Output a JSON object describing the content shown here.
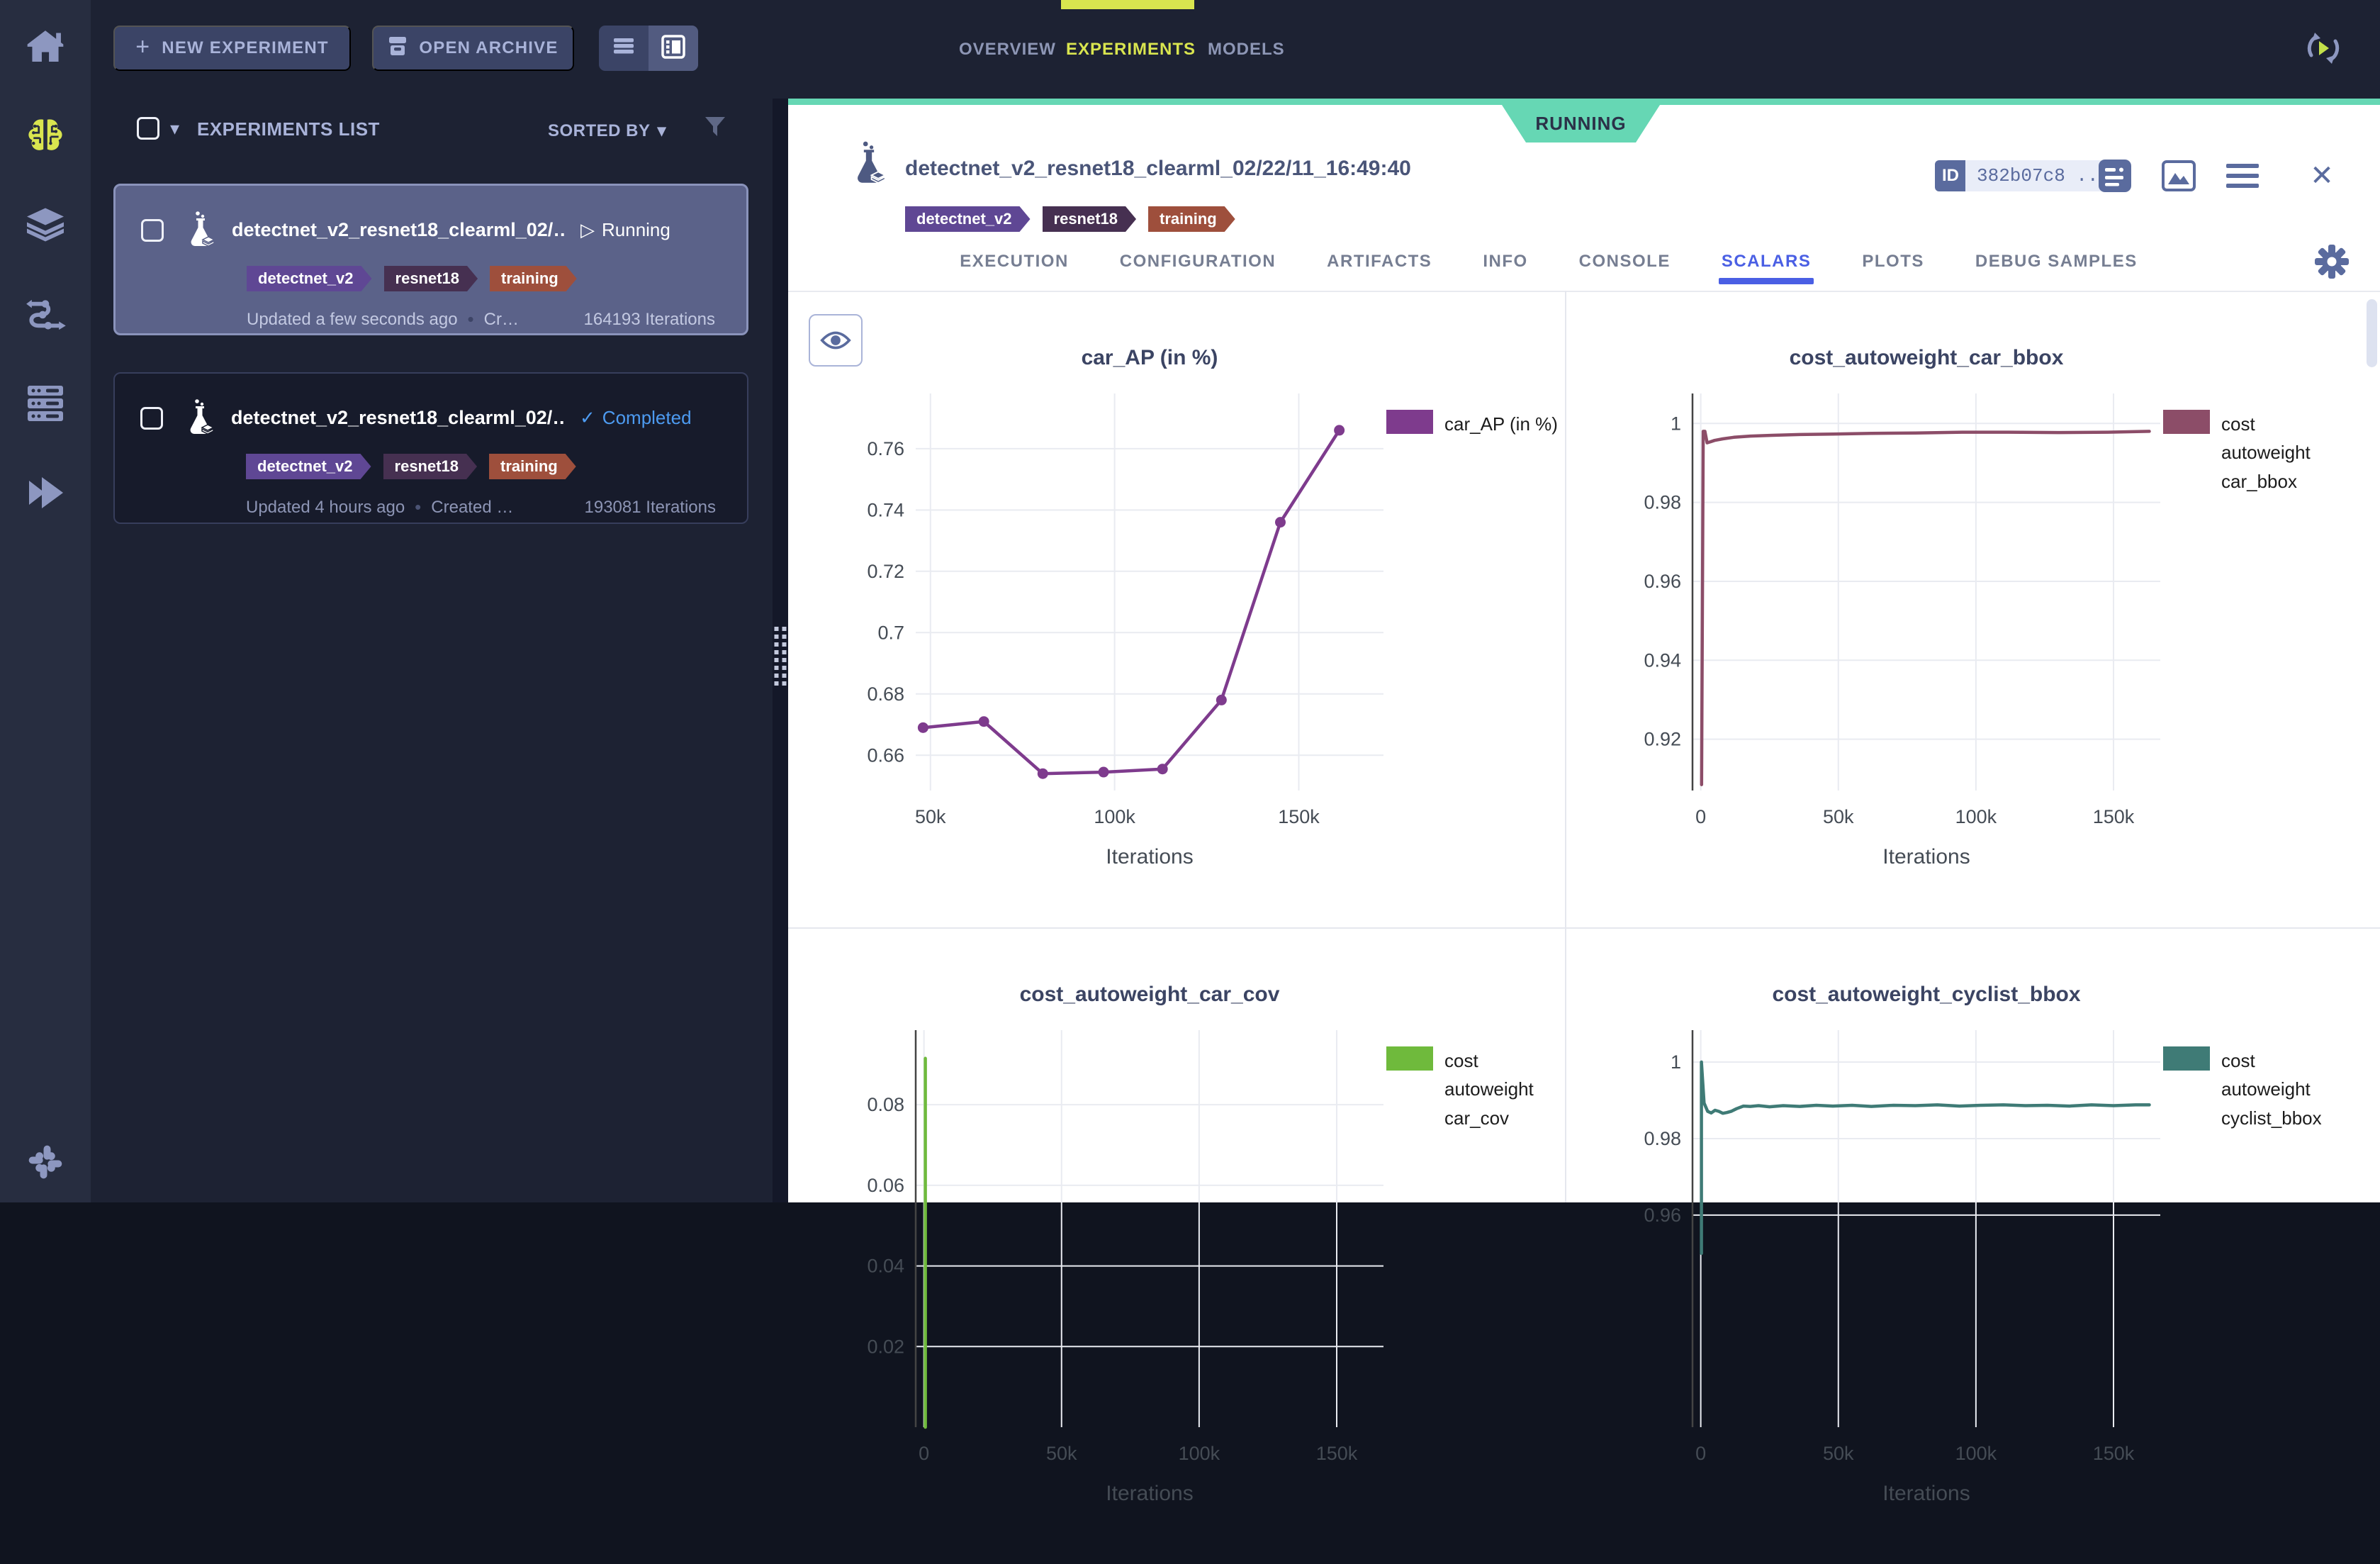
{
  "colors": {
    "accent_yellow_green": "#d9e54f",
    "running_teal": "#66d7b4",
    "active_tab_blue": "#4a5fe4",
    "completed_blue": "#4d9bf1",
    "tag_detectnet_v2": "#5f4794",
    "tag_resnet18": "#463051",
    "tag_training": "#9e4f3c"
  },
  "icons": {
    "plus": "+",
    "caret_down": "▾",
    "dot_separator": "•",
    "running_glyph": "▷",
    "completed_glyph": "✓",
    "close_glyph": "✕"
  },
  "top_bar": {
    "new_experiment_label": "NEW EXPERIMENT",
    "open_archive_label": "OPEN ARCHIVE"
  },
  "nav": {
    "overview": "OVERVIEW",
    "experiments": "EXPERIMENTS",
    "models": "MODELS"
  },
  "list_panel": {
    "title": "EXPERIMENTS LIST",
    "sorted_by_label": "SORTED BY",
    "experiments": [
      {
        "name": "detectnet_v2_resnet18_clearml_02/…",
        "status": "Running",
        "tags": [
          "detectnet_v2",
          "resnet18",
          "training"
        ],
        "updated": "Updated a few seconds ago",
        "created": "Cr…",
        "iterations": "164193 Iterations"
      },
      {
        "name": "detectnet_v2_resnet18_clearml_02/…",
        "status": "Completed",
        "tags": [
          "detectnet_v2",
          "resnet18",
          "training"
        ],
        "updated": "Updated 4 hours ago",
        "created": "Created …",
        "iterations": "193081 Iterations"
      }
    ]
  },
  "detail": {
    "status_badge": "RUNNING",
    "title": "detectnet_v2_resnet18_clearml_02/22/11_16:49:40",
    "id_label": "ID",
    "id_value": "382b07c8 ...",
    "tags": [
      "detectnet_v2",
      "resnet18",
      "training"
    ],
    "tabs": [
      "EXECUTION",
      "CONFIGURATION",
      "ARTIFACTS",
      "INFO",
      "CONSOLE",
      "SCALARS",
      "PLOTS",
      "DEBUG SAMPLES"
    ],
    "active_tab": "SCALARS"
  },
  "chart_data": [
    {
      "type": "line",
      "title": "car_AP (in %)",
      "xlabel": "Iterations",
      "legend": "car_AP (in %)",
      "color": "#7e3b8d",
      "markers": true,
      "axis_line": false,
      "x": [
        48000,
        64500,
        80500,
        97000,
        113000,
        129000,
        145000,
        161000
      ],
      "y": [
        0.669,
        0.671,
        0.654,
        0.6545,
        0.6555,
        0.678,
        0.736,
        0.766
      ],
      "xlim": [
        46000,
        173000
      ],
      "ylim": [
        0.6485,
        0.778
      ],
      "xticks": [
        50000,
        100000,
        150000
      ],
      "xtick_labels": [
        "50k",
        "100k",
        "150k"
      ],
      "yticks": [
        0.66,
        0.68,
        0.7,
        0.72,
        0.74,
        0.76
      ],
      "ytick_labels": [
        "0.66",
        "0.68",
        "0.7",
        "0.72",
        "0.74",
        "0.76"
      ]
    },
    {
      "type": "line",
      "title": "cost_autoweight_car_bbox",
      "xlabel": "Iterations",
      "legend": "cost autoweight car_bbox",
      "color": "#8c4d68",
      "markers": false,
      "axis_line": true,
      "x": [
        300,
        900,
        1500,
        2300,
        3200,
        5000,
        8000,
        12000,
        18000,
        26000,
        36000,
        48000,
        62000,
        78000,
        95000,
        112000,
        130000,
        148000,
        163000
      ],
      "y": [
        0.9085,
        0.998,
        0.998,
        0.9951,
        0.9953,
        0.9957,
        0.9961,
        0.9965,
        0.9968,
        0.997,
        0.9972,
        0.9973,
        0.9975,
        0.9976,
        0.9978,
        0.9978,
        0.9977,
        0.9978,
        0.998
      ],
      "xlim": [
        -3000,
        167000
      ],
      "ylim": [
        0.907,
        1.0076
      ],
      "xticks": [
        0,
        50000,
        100000,
        150000
      ],
      "xtick_labels": [
        "0",
        "50k",
        "100k",
        "150k"
      ],
      "yticks": [
        0.92,
        0.94,
        0.96,
        0.98,
        1
      ],
      "ytick_labels": [
        "0.92",
        "0.94",
        "0.96",
        "0.98",
        "1"
      ]
    },
    {
      "type": "line",
      "title": "cost_autoweight_car_cov",
      "xlabel": "Iterations",
      "legend": "cost autoweight car_cov",
      "color": "#6fba3c",
      "markers": false,
      "axis_line": true,
      "x": [
        500,
        500
      ],
      "y": [
        0.0915,
        0.0
      ],
      "xlim": [
        -3000,
        167000
      ],
      "ylim": [
        0.0,
        0.0985
      ],
      "xticks": [
        0,
        50000,
        100000,
        150000
      ],
      "xtick_labels": [
        "0",
        "50k",
        "100k",
        "150k"
      ],
      "yticks": [
        0.08,
        0.06,
        0.04,
        0.02
      ],
      "ytick_labels": [
        "0.08",
        "0.06",
        "0.04",
        "0.02"
      ]
    },
    {
      "type": "line",
      "title": "cost_autoweight_cyclist_bbox",
      "xlabel": "Iterations",
      "legend": "cost autoweight cyclist_bbox",
      "color": "#3f7b76",
      "markers": false,
      "axis_line": true,
      "x": [
        250,
        250,
        1200,
        2500,
        3800,
        5200,
        6600,
        8000,
        9500,
        11000,
        13000,
        15500,
        18000,
        21000,
        25000,
        30000,
        36000,
        42000,
        48000,
        55000,
        62000,
        70000,
        78000,
        86000,
        94000,
        102000,
        110000,
        118000,
        126000,
        134000,
        142000,
        150000,
        158000,
        163000
      ],
      "y": [
        0.95,
        1.0,
        0.9893,
        0.9871,
        0.9867,
        0.9874,
        0.9871,
        0.9866,
        0.9868,
        0.9871,
        0.9878,
        0.9885,
        0.9884,
        0.9886,
        0.9883,
        0.9886,
        0.9884,
        0.9887,
        0.9885,
        0.9887,
        0.9884,
        0.9887,
        0.9886,
        0.9888,
        0.9885,
        0.9887,
        0.9888,
        0.9886,
        0.9887,
        0.9885,
        0.9888,
        0.9886,
        0.9888,
        0.9888
      ],
      "xlim": [
        -3000,
        167000
      ],
      "ylim": [
        0.9046,
        1.00833
      ],
      "xticks": [
        0,
        50000,
        100000,
        150000
      ],
      "xtick_labels": [
        "0",
        "50k",
        "100k",
        "150k"
      ],
      "yticks": [
        1,
        0.98,
        0.96
      ],
      "ytick_labels": [
        "1",
        "0.98",
        "0.96"
      ]
    }
  ]
}
